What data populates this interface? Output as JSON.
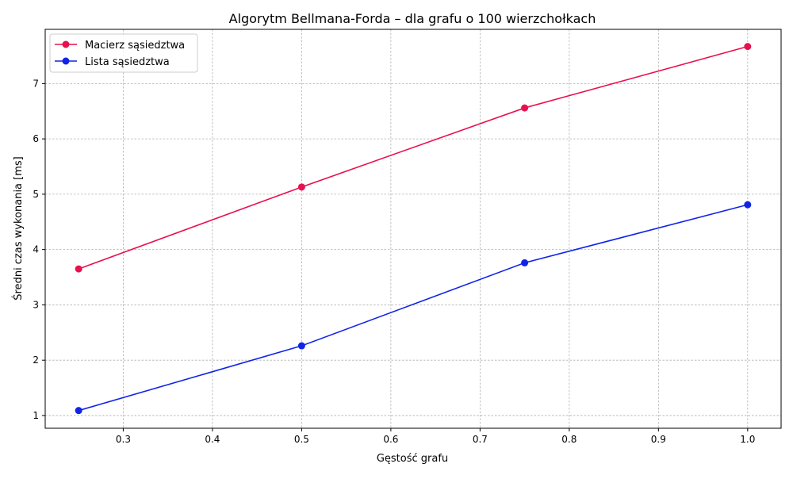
{
  "chart_data": {
    "type": "line",
    "title": "Algorytm Bellmana-Forda – dla grafu o 100 wierzchołkach",
    "xlabel": "Gęstość grafu",
    "ylabel": "Średni czas wykonania [ms]",
    "xlim": [
      0.2125,
      1.0375
    ],
    "ylim": [
      0.77,
      7.98
    ],
    "x_ticks": [
      0.3,
      0.4,
      0.5,
      0.6,
      0.7,
      0.8,
      0.9,
      1.0
    ],
    "x_tick_labels": [
      "0.3",
      "0.4",
      "0.5",
      "0.6",
      "0.7",
      "0.8",
      "0.9",
      "1.0"
    ],
    "y_ticks": [
      1,
      2,
      3,
      4,
      5,
      6,
      7
    ],
    "y_tick_labels": [
      "1",
      "2",
      "3",
      "4",
      "5",
      "6",
      "7"
    ],
    "grid": true,
    "legend_position": "top-left",
    "x": [
      0.25,
      0.5,
      0.75,
      1.0
    ],
    "series": [
      {
        "name": "Macierz sąsiedztwa",
        "color": "#e8114f",
        "marker": "circle",
        "values": [
          3.65,
          5.13,
          6.56,
          7.67
        ]
      },
      {
        "name": "Lista sąsiedztwa",
        "color": "#1024e6",
        "marker": "circle",
        "values": [
          1.09,
          2.26,
          3.76,
          4.81
        ]
      }
    ]
  }
}
